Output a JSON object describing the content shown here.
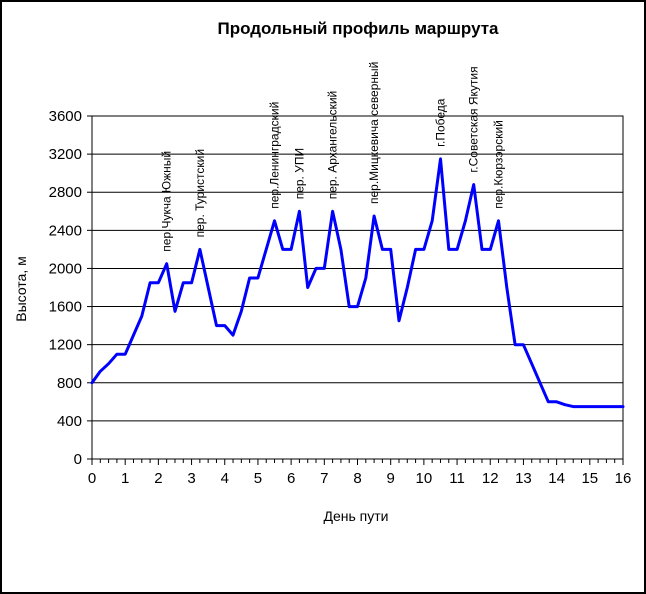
{
  "chart_data": {
    "type": "line",
    "title": "Продольный профиль маршрута",
    "xlabel": "День пути",
    "ylabel": "Высота, м",
    "xlim": [
      0,
      16
    ],
    "ylim": [
      0,
      3600
    ],
    "xticks": [
      "0",
      "1",
      "2",
      "3",
      "4",
      "5",
      "6",
      "7",
      "8",
      "9",
      "10",
      "11",
      "12",
      "13",
      "14",
      "15",
      "16"
    ],
    "yticks": [
      "0",
      "400",
      "800",
      "1200",
      "1600",
      "2000",
      "2400",
      "2800",
      "3200",
      "3600"
    ],
    "grid": "horizontal",
    "line_color": "#0000ff",
    "series": [
      {
        "x": [
          0,
          0.25,
          0.5,
          0.75,
          1,
          1.25,
          1.5,
          1.75,
          2,
          2.25,
          2.5,
          2.75,
          3,
          3.25,
          3.5,
          3.75,
          4,
          4.25,
          4.5,
          4.75,
          5,
          5.25,
          5.5,
          5.75,
          6,
          6.25,
          6.5,
          6.75,
          7,
          7.25,
          7.5,
          7.75,
          8,
          8.25,
          8.5,
          8.75,
          9,
          9.25,
          9.5,
          9.75,
          10,
          10.25,
          10.5,
          10.75,
          11,
          11.25,
          11.5,
          11.75,
          12,
          12.25,
          12.5,
          12.75,
          13,
          13.25,
          13.5,
          13.75,
          14,
          14.25,
          14.5,
          14.75,
          15,
          15.25,
          15.5,
          15.75,
          16
        ],
        "values": [
          800,
          920,
          1000,
          1100,
          1100,
          1300,
          1500,
          1850,
          1850,
          2050,
          1550,
          1850,
          1850,
          2200,
          1800,
          1400,
          1400,
          1300,
          1550,
          1900,
          1900,
          2200,
          2500,
          2200,
          2200,
          2600,
          1800,
          2000,
          2000,
          2600,
          2200,
          1600,
          1600,
          1900,
          2550,
          2200,
          2200,
          1450,
          1800,
          2200,
          2200,
          2500,
          3150,
          2200,
          2200,
          2500,
          2880,
          2200,
          2200,
          2500,
          1800,
          1200,
          1200,
          1000,
          800,
          600,
          600,
          570,
          550,
          550,
          550,
          550,
          550,
          550,
          550
        ]
      }
    ],
    "annotations": [
      {
        "x": 2.25,
        "y": 2050,
        "text": "пер.Чукча Южный"
      },
      {
        "x": 3.25,
        "y": 2200,
        "text": "пер. Туристский"
      },
      {
        "x": 5.5,
        "y": 2500,
        "text": "пер.Ленинградский"
      },
      {
        "x": 6.25,
        "y": 2600,
        "text": "пер. УПИ"
      },
      {
        "x": 7.25,
        "y": 2600,
        "text": "пер. Архангельский"
      },
      {
        "x": 8.5,
        "y": 2550,
        "text": "пер.Мицкевича северный"
      },
      {
        "x": 10.5,
        "y": 3150,
        "text": "г.Победа"
      },
      {
        "x": 11.5,
        "y": 2880,
        "text": "г.Советская Якутия"
      },
      {
        "x": 12.25,
        "y": 2500,
        "text": "пер.Кюрзэрский"
      }
    ]
  }
}
